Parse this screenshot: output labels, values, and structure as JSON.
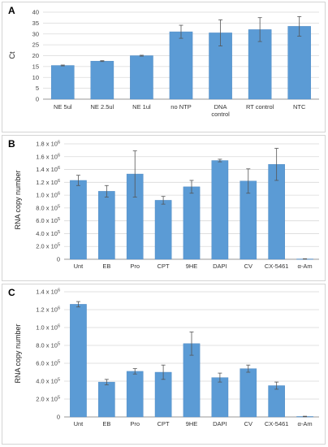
{
  "colors": {
    "bar": "#5b9bd5",
    "bar_edge": "#4a86c0",
    "grid": "#d9d9d9",
    "error_bar": "#555555",
    "axis": "#9a9a9a"
  },
  "panels": [
    {
      "letter": "A"
    },
    {
      "letter": "B"
    },
    {
      "letter": "C"
    }
  ],
  "chart_data": [
    {
      "type": "bar",
      "panel": "A",
      "ylabel": "Ct",
      "ylim": [
        0,
        40
      ],
      "yticks": [
        0,
        5,
        10,
        15,
        20,
        25,
        30,
        35,
        40
      ],
      "ytick_labels": [
        "0",
        "5",
        "10",
        "15",
        "20",
        "25",
        "30",
        "35",
        "40"
      ],
      "grid": true,
      "categories": [
        [
          "NE 5ul"
        ],
        [
          "NE 2.5ul"
        ],
        [
          "NE 1ul"
        ],
        [
          "no NTP"
        ],
        [
          "DNA",
          "control"
        ],
        [
          "RT control"
        ],
        [
          "NTC"
        ]
      ],
      "values": [
        15.5,
        17.5,
        20,
        31,
        30.5,
        32,
        33.5
      ],
      "errors": [
        0.2,
        0.2,
        0.2,
        3,
        6,
        5.5,
        4.5
      ]
    },
    {
      "type": "bar",
      "panel": "B",
      "ylabel": "RNA copy number",
      "ylim": [
        0,
        1800000
      ],
      "yticks": [
        0,
        200000,
        400000,
        600000,
        800000,
        1000000,
        1200000,
        1400000,
        1600000,
        1800000
      ],
      "ytick_labels": [
        [
          "0",
          ""
        ],
        [
          "2.0 x 10",
          "5"
        ],
        [
          "4.0 x 10",
          "5"
        ],
        [
          "6.0 x 10",
          "5"
        ],
        [
          "8.0 x 10",
          "5"
        ],
        [
          "1.0 x 10",
          "6"
        ],
        [
          "1.2 x 10",
          "6"
        ],
        [
          "1.4 x 10",
          "6"
        ],
        [
          "1.6 x 10",
          "6"
        ],
        [
          "1.8 x 10",
          "6"
        ]
      ],
      "grid": true,
      "categories": [
        [
          "Unt"
        ],
        [
          "EB"
        ],
        [
          "Pro"
        ],
        [
          "CPT"
        ],
        [
          "9HE"
        ],
        [
          "DAPI"
        ],
        [
          "CV"
        ],
        [
          "CX-5461"
        ],
        [
          "α-Am"
        ]
      ],
      "values": [
        1230000,
        1060000,
        1330000,
        920000,
        1130000,
        1540000,
        1220000,
        1480000,
        5000
      ],
      "errors": [
        80000,
        90000,
        360000,
        60000,
        100000,
        20000,
        190000,
        250000,
        3000
      ]
    },
    {
      "type": "bar",
      "panel": "C",
      "ylabel": "RNA copy number",
      "ylim": [
        0,
        1400000
      ],
      "yticks": [
        0,
        200000,
        400000,
        600000,
        800000,
        1000000,
        1200000,
        1400000
      ],
      "ytick_labels": [
        [
          "0",
          ""
        ],
        [
          "2.0 x 10",
          "5"
        ],
        [
          "4.0 x 10",
          "5"
        ],
        [
          "6.0 x 10",
          "5"
        ],
        [
          "8.0 x 10",
          "5"
        ],
        [
          "1.0 x 10",
          "6"
        ],
        [
          "1.2 x 10",
          "6"
        ],
        [
          "1.4 x 10",
          "6"
        ]
      ],
      "grid": true,
      "categories": [
        [
          "Unt"
        ],
        [
          "EB"
        ],
        [
          "Pro"
        ],
        [
          "CPT"
        ],
        [
          "9HE"
        ],
        [
          "DAPI"
        ],
        [
          "CV"
        ],
        [
          "CX-5461"
        ],
        [
          "α-Am"
        ]
      ],
      "values": [
        1260000,
        390000,
        510000,
        500000,
        820000,
        440000,
        540000,
        350000,
        5000
      ],
      "errors": [
        30000,
        30000,
        30000,
        80000,
        130000,
        50000,
        40000,
        40000,
        3000
      ]
    }
  ]
}
